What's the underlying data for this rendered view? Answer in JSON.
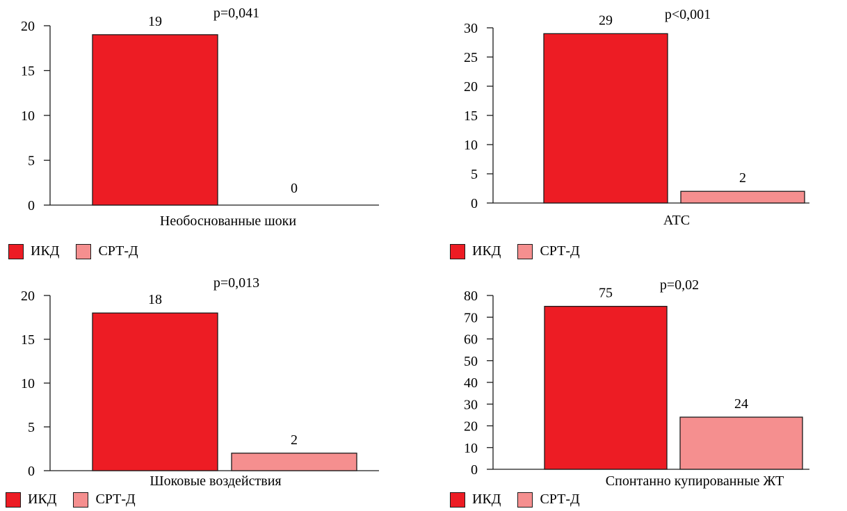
{
  "colors": {
    "icd": "#ed1c24",
    "crt": "#f58f8f",
    "axis": "#1a1a1a"
  },
  "legend": {
    "items": [
      {
        "label": "ИКД"
      },
      {
        "label": "СРТ-Д"
      }
    ]
  },
  "chart_data": [
    {
      "type": "bar",
      "xlabel": "Необоснованные шоки",
      "pvalue": "p=0,041",
      "series": [
        {
          "name": "ИКД",
          "values": [
            19
          ]
        },
        {
          "name": "СРТ-Д",
          "values": [
            0
          ]
        }
      ],
      "data_labels": [
        "19",
        "0"
      ],
      "ylim": [
        0,
        20
      ],
      "yticks": [
        "0",
        "5",
        "10",
        "15",
        "20"
      ],
      "legend_position": "bottom-left"
    },
    {
      "type": "bar",
      "xlabel": "АТС",
      "pvalue": "p<0,001",
      "series": [
        {
          "name": "ИКД",
          "values": [
            29
          ]
        },
        {
          "name": "СРТ-Д",
          "values": [
            2
          ]
        }
      ],
      "data_labels": [
        "29",
        "2"
      ],
      "ylim": [
        0,
        30
      ],
      "yticks": [
        "0",
        "5",
        "10",
        "15",
        "20",
        "25",
        "30"
      ],
      "legend_position": "bottom-left"
    },
    {
      "type": "bar",
      "xlabel": "Шоковые воздействия",
      "pvalue": "p=0,013",
      "series": [
        {
          "name": "ИКД",
          "values": [
            18
          ]
        },
        {
          "name": "СРТ-Д",
          "values": [
            2
          ]
        }
      ],
      "data_labels": [
        "18",
        "2"
      ],
      "ylim": [
        0,
        20
      ],
      "yticks": [
        "0",
        "5",
        "10",
        "15",
        "20"
      ],
      "legend_position": "bottom-left"
    },
    {
      "type": "bar",
      "xlabel": "Спонтанно купированные ЖТ",
      "pvalue": "p=0,02",
      "series": [
        {
          "name": "ИКД",
          "values": [
            75
          ]
        },
        {
          "name": "СРТ-Д",
          "values": [
            24
          ]
        }
      ],
      "data_labels": [
        "75",
        "24"
      ],
      "ylim": [
        0,
        80
      ],
      "yticks": [
        "0",
        "10",
        "20",
        "30",
        "40",
        "50",
        "60",
        "70",
        "80"
      ],
      "legend_position": "bottom-left"
    }
  ]
}
